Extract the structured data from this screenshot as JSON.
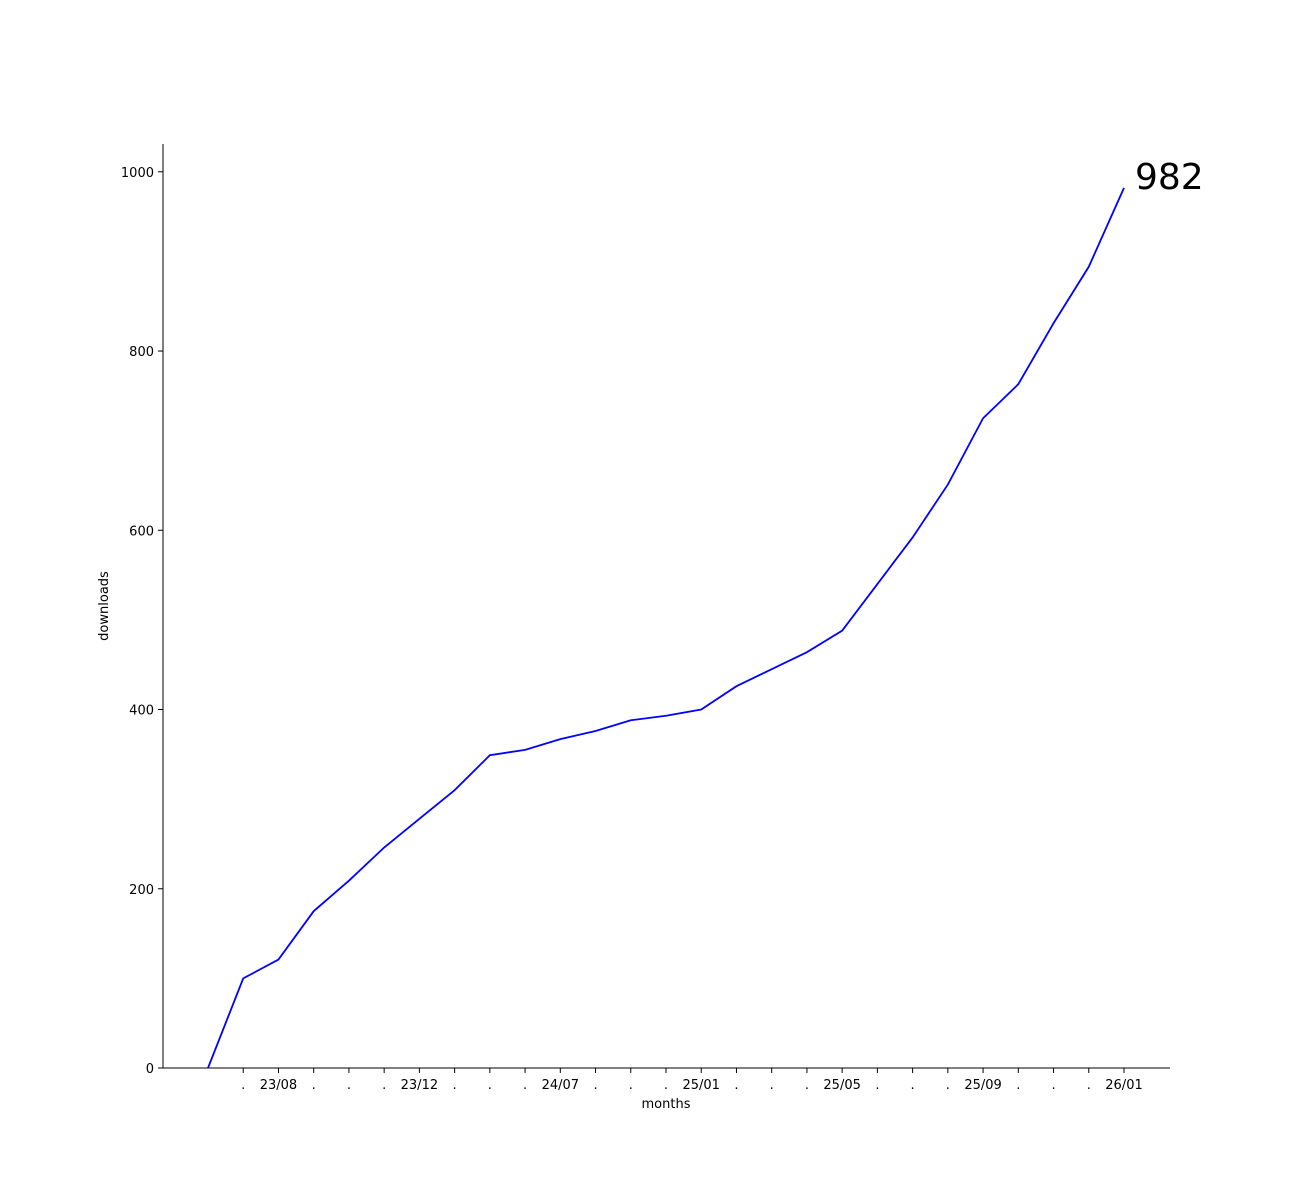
{
  "chart_data": {
    "type": "line",
    "x_label": "months",
    "y_label": "downloads",
    "categories": [
      null,
      ".",
      "23/08",
      ".",
      ".",
      ".",
      "23/12",
      ".",
      ".",
      ".",
      "24/07",
      ".",
      ".",
      ".",
      "25/01",
      ".",
      ".",
      ".",
      "25/05",
      ".",
      ".",
      ".",
      "25/09",
      ".",
      ".",
      ".",
      "26/01"
    ],
    "series": [
      {
        "color": "#0000ff",
        "values": [
          0,
          100,
          121,
          175,
          209,
          246,
          278,
          310,
          349,
          355,
          367,
          376,
          388,
          393,
          400,
          426,
          445,
          464,
          488,
          540,
          592,
          651,
          725,
          763,
          831,
          894,
          982
        ]
      }
    ],
    "ylim": [
      0,
      1031
    ],
    "yticks": [
      0,
      200,
      400,
      600,
      800,
      1000
    ]
  }
}
